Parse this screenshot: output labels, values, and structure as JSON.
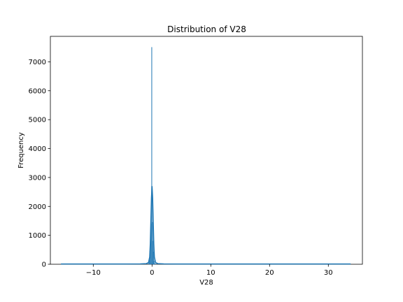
{
  "chart_data": {
    "type": "bar",
    "title": "Distribution of V28",
    "xlabel": "V28",
    "ylabel": "Frequency",
    "xlim": [
      -17.3,
      35.8
    ],
    "ylim": [
      0,
      7880
    ],
    "x_ticks": [
      -10,
      0,
      10,
      20,
      30
    ],
    "x_tick_labels": [
      "−10",
      "0",
      "10",
      "20",
      "30"
    ],
    "y_ticks": [
      0,
      1000,
      2000,
      3000,
      4000,
      5000,
      6000,
      7000
    ],
    "y_tick_labels": [
      "0",
      "1000",
      "2000",
      "3000",
      "4000",
      "5000",
      "6000",
      "7000"
    ],
    "grid": false,
    "colors": {
      "bars": "#1f77b4",
      "kde": "#1f77b4"
    },
    "bins": {
      "x": [
        -0.55,
        -0.45,
        -0.35,
        -0.25,
        -0.15,
        -0.05,
        0.05,
        0.15,
        0.25,
        0.35,
        0.45,
        0.55
      ],
      "values": [
        30,
        120,
        450,
        820,
        1400,
        7500,
        1450,
        800,
        430,
        110,
        25,
        10
      ]
    },
    "kde": {
      "x": [
        -15.5,
        -5,
        -2,
        -1,
        -0.6,
        -0.4,
        -0.3,
        -0.2,
        -0.1,
        0,
        0.1,
        0.2,
        0.3,
        0.4,
        0.6,
        1,
        2,
        5,
        20,
        33.8
      ],
      "y": [
        10,
        10,
        12,
        20,
        60,
        250,
        700,
        1500,
        2300,
        2700,
        2300,
        1500,
        700,
        250,
        60,
        20,
        12,
        10,
        10,
        10
      ]
    },
    "tails": {
      "left_end": -15.5,
      "right_end": 33.8
    }
  }
}
